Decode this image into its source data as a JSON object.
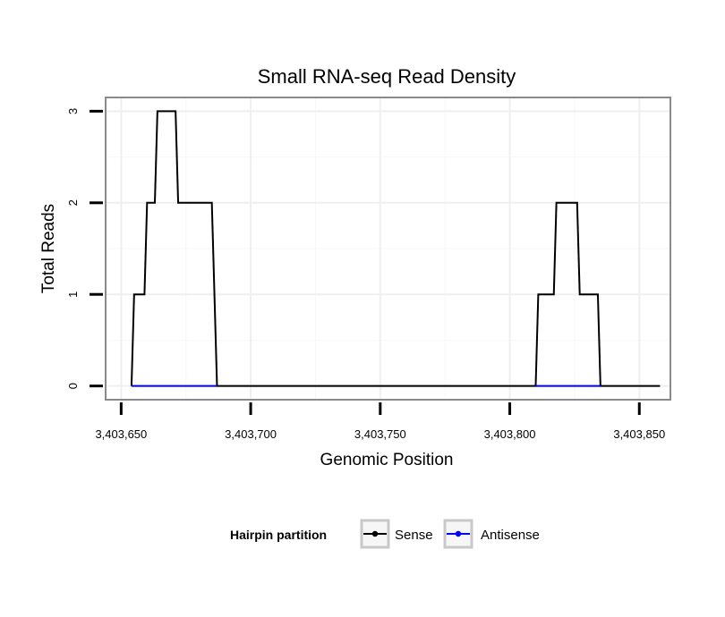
{
  "chart_data": {
    "type": "line",
    "title": "Small RNA-seq Read Density",
    "xlabel": "Genomic Position",
    "ylabel": "Total Reads",
    "xlim": [
      3403644,
      3403862
    ],
    "ylim": [
      -0.15,
      3.15
    ],
    "x_ticks": [
      3403650,
      3403700,
      3403750,
      3403800,
      3403850
    ],
    "x_tick_labels": [
      "3,403,650",
      "3,403,700",
      "3,403,750",
      "3,403,800",
      "3,403,850"
    ],
    "y_ticks": [
      0,
      1,
      2,
      3
    ],
    "y_tick_labels": [
      "0",
      "1",
      "2",
      "3"
    ],
    "grid": true,
    "legend": {
      "title": "Hairpin partition",
      "placement": "bottom",
      "entries": [
        "Sense",
        "Antisense"
      ]
    },
    "series": [
      {
        "name": "Sense",
        "color": "#000000",
        "x": [
          3403654,
          3403655,
          3403659,
          3403660,
          3403663,
          3403664,
          3403671,
          3403672,
          3403685,
          3403687,
          3403810,
          3403811,
          3403817,
          3403818,
          3403826,
          3403827,
          3403834,
          3403835,
          3403858
        ],
        "y": [
          0,
          1,
          1,
          2,
          2,
          3,
          3,
          2,
          2,
          0,
          0,
          1,
          1,
          2,
          2,
          1,
          1,
          0,
          0
        ]
      },
      {
        "name": "Antisense",
        "color": "#0000ff",
        "x": [
          3403654,
          3403687,
          3403810,
          3403835
        ],
        "y": [
          0,
          0,
          0,
          0
        ],
        "segments": [
          [
            3403654,
            3403687
          ],
          [
            3403810,
            3403835
          ]
        ]
      }
    ]
  }
}
